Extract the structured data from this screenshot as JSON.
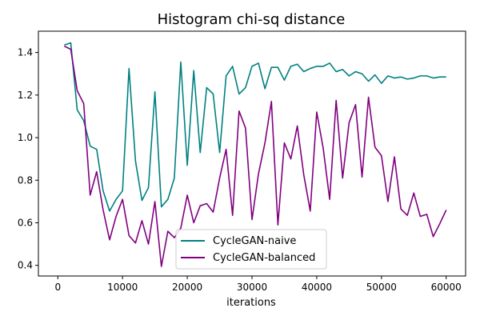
{
  "chart_data": {
    "type": "line",
    "title": "Histogram chi-sq distance",
    "xlabel": "iterations",
    "ylabel": "",
    "xlim": [
      -3000,
      63000
    ],
    "ylim": [
      0.35,
      1.5
    ],
    "x_ticks": [
      0,
      10000,
      20000,
      30000,
      40000,
      50000,
      60000
    ],
    "x_tick_labels": [
      "0",
      "10000",
      "20000",
      "30000",
      "40000",
      "50000",
      "60000"
    ],
    "y_ticks": [
      0.4,
      0.6,
      0.8,
      1.0,
      1.2,
      1.4
    ],
    "y_tick_labels": [
      "0.4",
      "0.6",
      "0.8",
      "1.0",
      "1.2",
      "1.4"
    ],
    "grid": false,
    "legend_position": "lower-center",
    "x": [
      1000,
      2000,
      3000,
      4000,
      5000,
      6000,
      7000,
      8000,
      9000,
      10000,
      11000,
      12000,
      13000,
      14000,
      15000,
      16000,
      17000,
      18000,
      19000,
      20000,
      21000,
      22000,
      23000,
      24000,
      25000,
      26000,
      27000,
      28000,
      29000,
      30000,
      31000,
      32000,
      33000,
      34000,
      35000,
      36000,
      37000,
      38000,
      39000,
      40000,
      41000,
      42000,
      43000,
      44000,
      45000,
      46000,
      47000,
      48000,
      49000,
      50000,
      51000,
      52000,
      53000,
      54000,
      55000,
      56000,
      57000,
      58000,
      59000,
      60000
    ],
    "series": [
      {
        "name": "CycleGAN-naive",
        "color": "#008080",
        "values": [
          1.435,
          1.445,
          1.13,
          1.08,
          0.96,
          0.945,
          0.75,
          0.655,
          0.71,
          0.75,
          1.325,
          0.89,
          0.705,
          0.765,
          1.215,
          0.675,
          0.71,
          0.81,
          1.355,
          0.87,
          1.315,
          0.93,
          1.235,
          1.205,
          0.93,
          1.29,
          1.335,
          1.205,
          1.235,
          1.335,
          1.35,
          1.23,
          1.33,
          1.33,
          1.27,
          1.335,
          1.345,
          1.31,
          1.325,
          1.335,
          1.335,
          1.35,
          1.31,
          1.32,
          1.29,
          1.31,
          1.3,
          1.265,
          1.295,
          1.255,
          1.29,
          1.28,
          1.285,
          1.275,
          1.28,
          1.29,
          1.29,
          1.28,
          1.285,
          1.285
        ]
      },
      {
        "name": "CycleGAN-balanced",
        "color": "#800080",
        "values": [
          1.43,
          1.415,
          1.22,
          1.16,
          0.73,
          0.84,
          0.66,
          0.52,
          0.63,
          0.71,
          0.54,
          0.505,
          0.61,
          0.5,
          0.7,
          0.395,
          0.56,
          0.53,
          0.575,
          0.73,
          0.6,
          0.68,
          0.69,
          0.65,
          0.81,
          0.945,
          0.635,
          1.125,
          1.045,
          0.615,
          0.83,
          0.975,
          1.17,
          0.59,
          0.975,
          0.9,
          1.055,
          0.825,
          0.655,
          1.12,
          0.95,
          0.71,
          1.175,
          0.81,
          1.07,
          1.155,
          0.815,
          1.19,
          0.955,
          0.915,
          0.7,
          0.91,
          0.665,
          0.635,
          0.74,
          0.63,
          0.64,
          0.535,
          0.595,
          0.66
        ]
      }
    ]
  }
}
